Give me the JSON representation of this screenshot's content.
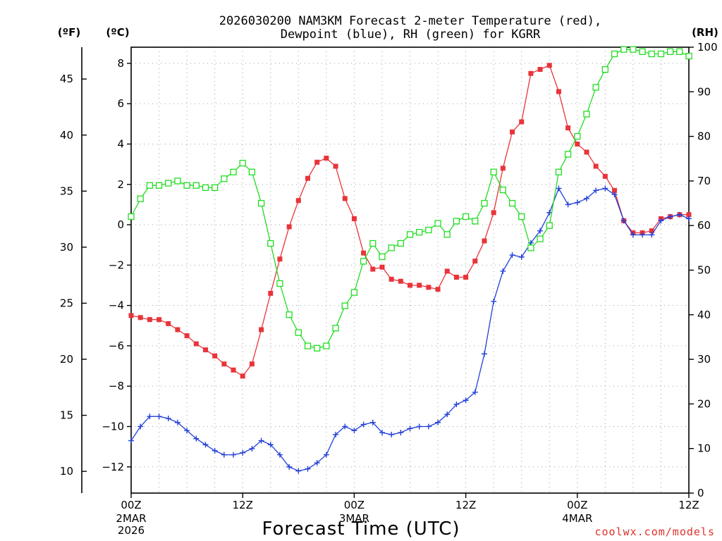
{
  "chart_data": {
    "type": "line",
    "title_line1": "2026030200 NAM3KM Forecast 2-meter Temperature (red),",
    "title_line2": "Dewpoint (blue), RH (green) for KGRR",
    "xlabel": "Forecast Time (UTC)",
    "credit": "coolwx.com/models",
    "unit_left_f": "(ºF)",
    "unit_left_c": "(ºC)",
    "unit_right": "(RH)",
    "xlim": [
      0,
      60
    ],
    "ylim_c": [
      -13.3,
      8.8
    ],
    "ylim_rh": [
      0,
      100
    ],
    "x_ticks": [
      {
        "x": 0,
        "label": "00Z",
        "date": "2MAR",
        "year": "2026"
      },
      {
        "x": 12,
        "label": "12Z"
      },
      {
        "x": 24,
        "label": "00Z",
        "date": "3MAR"
      },
      {
        "x": 36,
        "label": "12Z"
      },
      {
        "x": 48,
        "label": "00Z",
        "date": "4MAR"
      },
      {
        "x": 60,
        "label": "12Z"
      }
    ],
    "c_ticks": [
      {
        "v": -12,
        "label": "−12"
      },
      {
        "v": -10,
        "label": "−10"
      },
      {
        "v": -8,
        "label": "−8"
      },
      {
        "v": -6,
        "label": "−6"
      },
      {
        "v": -4,
        "label": "−4"
      },
      {
        "v": -2,
        "label": "−2"
      },
      {
        "v": 0,
        "label": "0"
      },
      {
        "v": 2,
        "label": "2"
      },
      {
        "v": 4,
        "label": "4"
      },
      {
        "v": 6,
        "label": "6"
      },
      {
        "v": 8,
        "label": "8"
      }
    ],
    "f_ticks": [
      {
        "v": 10,
        "label": "10"
      },
      {
        "v": 15,
        "label": "15"
      },
      {
        "v": 20,
        "label": "20"
      },
      {
        "v": 25,
        "label": "25"
      },
      {
        "v": 30,
        "label": "30"
      },
      {
        "v": 35,
        "label": "35"
      },
      {
        "v": 40,
        "label": "40"
      },
      {
        "v": 45,
        "label": "45"
      }
    ],
    "rh_ticks": [
      {
        "v": 0,
        "label": "0"
      },
      {
        "v": 10,
        "label": "10"
      },
      {
        "v": 20,
        "label": "20"
      },
      {
        "v": 30,
        "label": "30"
      },
      {
        "v": 40,
        "label": "40"
      },
      {
        "v": 50,
        "label": "50"
      },
      {
        "v": 60,
        "label": "60"
      },
      {
        "v": 70,
        "label": "70"
      },
      {
        "v": 80,
        "label": "80"
      },
      {
        "v": 90,
        "label": "90"
      },
      {
        "v": 100,
        "label": "100"
      }
    ],
    "series": [
      {
        "name": "Temperature",
        "color": "#e8343a",
        "marker": "filled-square",
        "axis": "C",
        "x": [
          0,
          1,
          2,
          3,
          4,
          5,
          6,
          7,
          8,
          9,
          10,
          11,
          12,
          13,
          14,
          15,
          16,
          17,
          18,
          19,
          20,
          21,
          22,
          23,
          24,
          25,
          26,
          27,
          28,
          29,
          30,
          31,
          32,
          33,
          34,
          35,
          36,
          37,
          38,
          39,
          40,
          41,
          42,
          43,
          44,
          45,
          46,
          47,
          48,
          49,
          50,
          51,
          52,
          53,
          54,
          55,
          56,
          57,
          58,
          59,
          60
        ],
        "values": [
          -4.5,
          -4.6,
          -4.7,
          -4.7,
          -4.9,
          -5.2,
          -5.5,
          -5.9,
          -6.2,
          -6.5,
          -6.9,
          -7.2,
          -7.5,
          -6.9,
          -5.2,
          -3.4,
          -1.7,
          -0.1,
          1.2,
          2.3,
          3.1,
          3.3,
          2.9,
          1.3,
          0.3,
          -1.4,
          -2.2,
          -2.1,
          -2.7,
          -2.8,
          -3.0,
          -3.0,
          -3.1,
          -3.2,
          -2.3,
          -2.6,
          -2.6,
          -1.8,
          -0.8,
          0.6,
          2.8,
          4.6,
          5.1,
          7.5,
          7.7,
          7.9,
          6.6,
          4.8,
          4.0,
          3.6,
          2.9,
          2.4,
          1.7,
          0.2,
          -0.4,
          -0.4,
          -0.3,
          0.3,
          0.4,
          0.5,
          0.5
        ]
      },
      {
        "name": "Dewpoint",
        "color": "#2340d8",
        "marker": "plus",
        "axis": "C",
        "x": [
          0,
          1,
          2,
          3,
          4,
          5,
          6,
          7,
          8,
          9,
          10,
          11,
          12,
          13,
          14,
          15,
          16,
          17,
          18,
          19,
          20,
          21,
          22,
          23,
          24,
          25,
          26,
          27,
          28,
          29,
          30,
          31,
          32,
          33,
          34,
          35,
          36,
          37,
          38,
          39,
          40,
          41,
          42,
          43,
          44,
          45,
          46,
          47,
          48,
          49,
          50,
          51,
          52,
          53,
          54,
          55,
          56,
          57,
          58,
          59,
          60
        ],
        "values": [
          -10.7,
          -10.0,
          -9.5,
          -9.5,
          -9.6,
          -9.8,
          -10.2,
          -10.6,
          -10.9,
          -11.2,
          -11.4,
          -11.4,
          -11.3,
          -11.1,
          -10.7,
          -10.9,
          -11.4,
          -12.0,
          -12.2,
          -12.1,
          -11.8,
          -11.4,
          -10.4,
          -10.0,
          -10.2,
          -9.9,
          -9.8,
          -10.3,
          -10.4,
          -10.3,
          -10.1,
          -10.0,
          -10.0,
          -9.8,
          -9.4,
          -8.9,
          -8.7,
          -8.3,
          -6.4,
          -3.8,
          -2.3,
          -1.5,
          -1.6,
          -0.9,
          -0.3,
          0.6,
          1.8,
          1.0,
          1.1,
          1.3,
          1.7,
          1.8,
          1.5,
          0.2,
          -0.5,
          -0.5,
          -0.5,
          0.2,
          0.4,
          0.5,
          0.3
        ]
      },
      {
        "name": "RH",
        "color": "#22dd22",
        "marker": "open-square",
        "axis": "RH",
        "x": [
          0,
          1,
          2,
          3,
          4,
          5,
          6,
          7,
          8,
          9,
          10,
          11,
          12,
          13,
          14,
          15,
          16,
          17,
          18,
          19,
          20,
          21,
          22,
          23,
          24,
          25,
          26,
          27,
          28,
          29,
          30,
          31,
          32,
          33,
          34,
          35,
          36,
          37,
          38,
          39,
          40,
          41,
          42,
          43,
          44,
          45,
          46,
          47,
          48,
          49,
          50,
          51,
          52,
          53,
          54,
          55,
          56,
          57,
          58,
          59,
          60
        ],
        "values": [
          62,
          66,
          69,
          69,
          69.5,
          70,
          69,
          69,
          68.5,
          68.5,
          70.5,
          72,
          74,
          72,
          65,
          56,
          47,
          40,
          36,
          33,
          32.5,
          33,
          37,
          42,
          45,
          52,
          56,
          53,
          55,
          56,
          58,
          58.5,
          59,
          60.5,
          58,
          61,
          62,
          61,
          65,
          72,
          68,
          65,
          62,
          55,
          57,
          60,
          72,
          76,
          80,
          85,
          91,
          95,
          98.5,
          99.5,
          99.5,
          99,
          98.5,
          98.5,
          99,
          99,
          98
        ]
      }
    ]
  }
}
